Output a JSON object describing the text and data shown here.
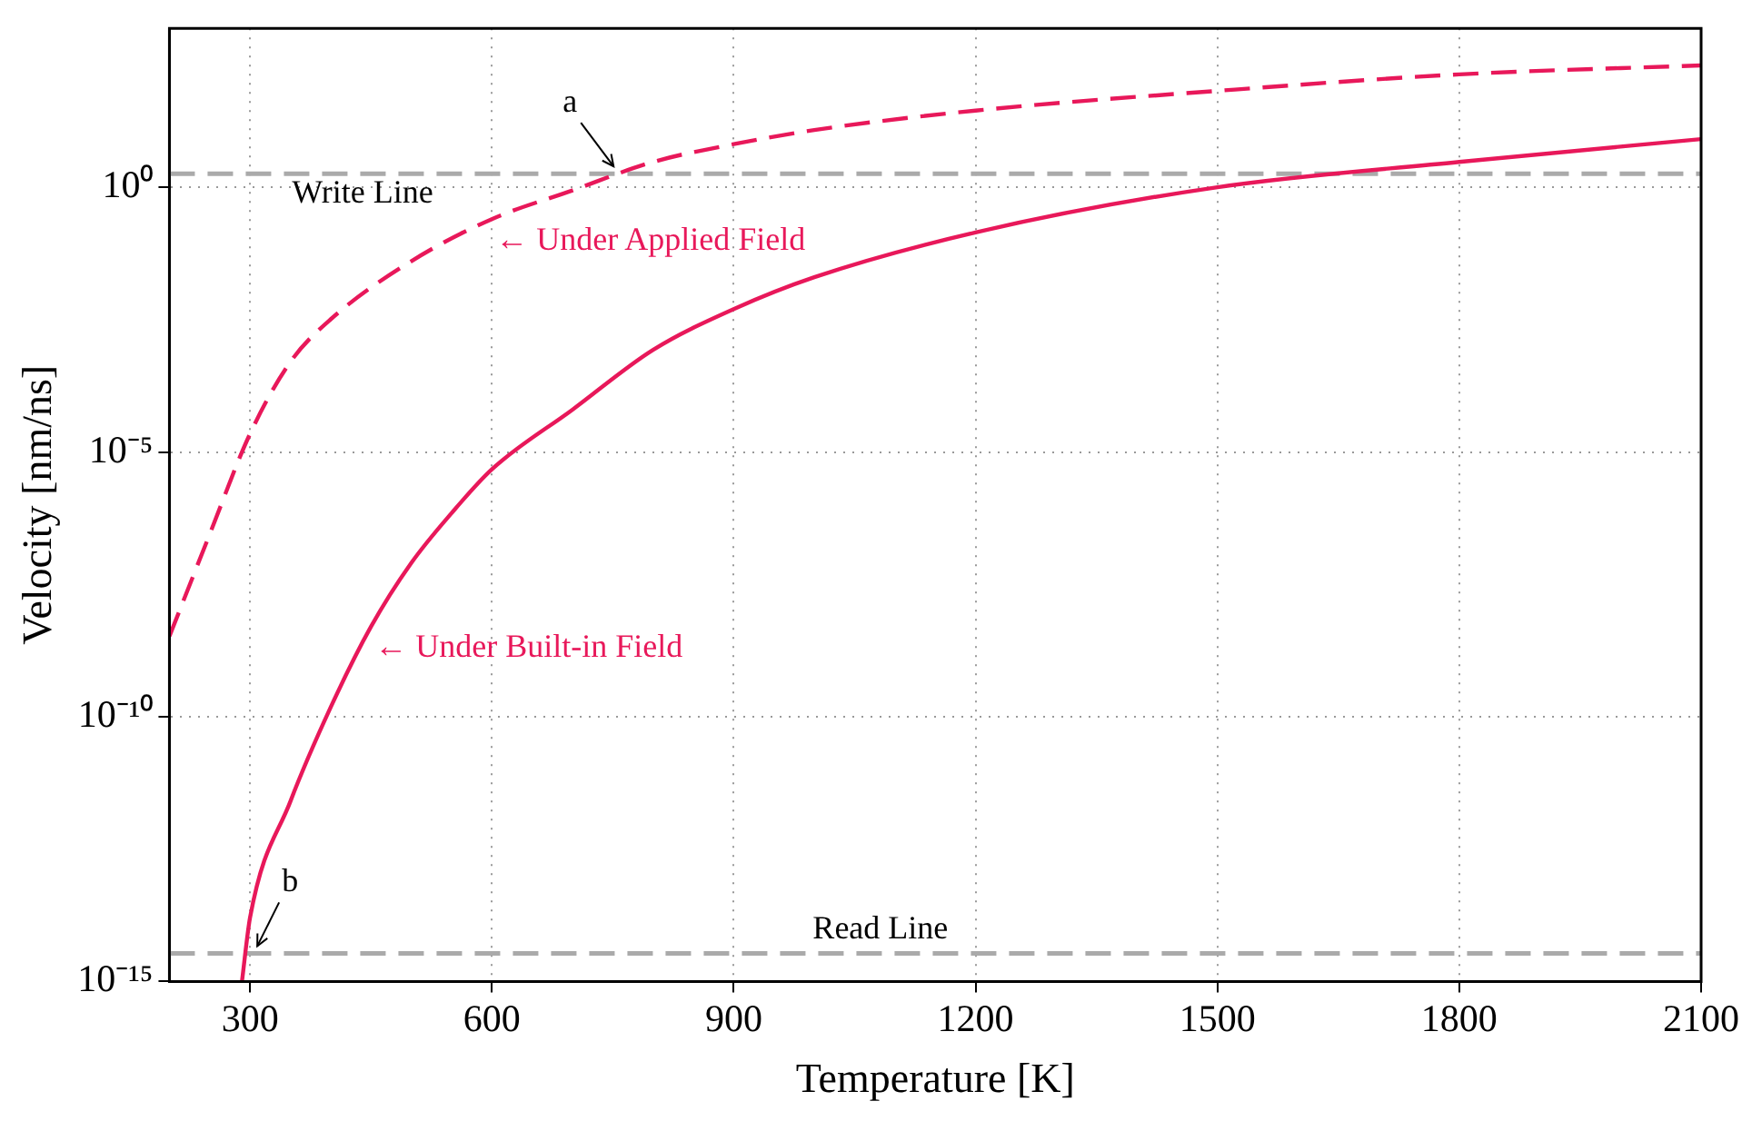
{
  "chart_data": {
    "type": "line",
    "xlabel": "Temperature [K]",
    "ylabel": "Velocity [nm/ns]",
    "log": "y",
    "xlim": [
      200,
      2100
    ],
    "xticks": [
      300,
      600,
      900,
      1200,
      1500,
      1800,
      2100
    ],
    "ylim": [
      1e-15,
      1000
    ],
    "yticks": [
      {
        "value": 1,
        "label": "10⁰"
      },
      {
        "value": 1e-05,
        "label": "10⁻⁵"
      },
      {
        "value": 1e-10,
        "label": "10⁻¹⁰"
      },
      {
        "value": 1e-15,
        "label": "10⁻¹⁵"
      }
    ],
    "grid": true,
    "legend": false,
    "marker": "none",
    "series": [
      {
        "name": "← Under Applied Field",
        "color": "#e8185a",
        "line_style": "dashed",
        "x": [
          200,
          250,
          300,
          350,
          400,
          500,
          600,
          700,
          800,
          900,
          1000,
          1200,
          1500,
          1800,
          2100
        ],
        "values": [
          3.3e-09,
          2.8e-07,
          2.2e-05,
          0.0005,
          0.0032,
          0.04,
          0.25,
          0.87,
          3,
          6.5,
          12,
          28,
          66,
          135,
          200
        ]
      },
      {
        "name": "← Under Built-in Field",
        "color": "#e8185a",
        "line_style": "solid",
        "x": [
          290,
          300,
          350,
          400,
          450,
          500,
          550,
          600,
          700,
          800,
          900,
          1000,
          1200,
          1500,
          1800,
          2100
        ],
        "values": [
          1e-15,
          1.6e-14,
          2.5e-12,
          1.5e-10,
          5e-09,
          8e-08,
          7e-07,
          4.7e-06,
          6.3e-05,
          0.00085,
          0.005,
          0.02,
          0.14,
          1,
          3,
          8.1
        ]
      }
    ],
    "ref_lines": [
      {
        "axis": "y",
        "value": 1.8,
        "label": "Write Line",
        "color": "#aaaaaa",
        "line_style": "dashed"
      },
      {
        "axis": "y",
        "value": 3.4e-15,
        "label": "Read Line",
        "color": "#aaaaaa",
        "line_style": "dashed"
      }
    ],
    "annotations": [
      {
        "text": "a",
        "x": 760,
        "y": 1.8
      },
      {
        "text": "b",
        "x": 300,
        "y": 3.4e-15
      }
    ]
  }
}
